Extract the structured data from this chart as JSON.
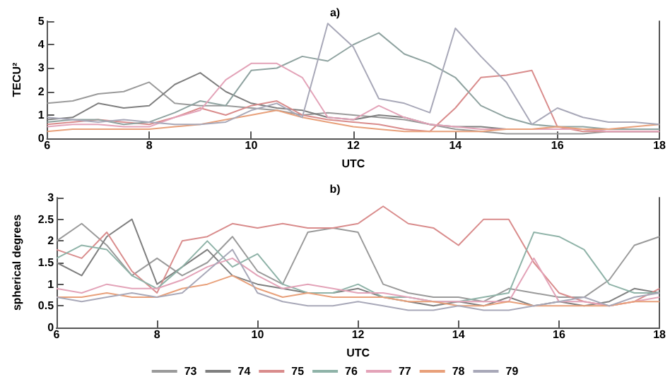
{
  "chart_data": [
    {
      "type": "line",
      "title": "a)",
      "xlabel": "UTC",
      "ylabel": "TECU²",
      "x": [
        6,
        6.5,
        7,
        7.5,
        8,
        8.5,
        9,
        9.5,
        10,
        10.5,
        11,
        11.5,
        12,
        12.5,
        13,
        13.5,
        14,
        14.5,
        15,
        15.5,
        16,
        16.5,
        17,
        17.5,
        18
      ],
      "xlim": [
        6,
        18
      ],
      "ylim": [
        0,
        5
      ],
      "xticks": [
        6,
        8,
        10,
        12,
        14,
        16,
        18
      ],
      "yticks": [
        0,
        1,
        2,
        3,
        4,
        5
      ],
      "grid": false,
      "legend": false,
      "marker": "none",
      "line_style": "solid",
      "series": [
        {
          "color": "#9a9a9a",
          "values": [
            1.5,
            1.6,
            1.9,
            2.0,
            2.4,
            1.5,
            1.4,
            1.4,
            1.3,
            1.2,
            1.0,
            1.1,
            1.0,
            0.9,
            0.8,
            0.6,
            0.4,
            0.3,
            0.2,
            0.2,
            0.2,
            0.2,
            0.3,
            0.3,
            0.3
          ]
        },
        {
          "color": "#7f7f7f",
          "values": [
            0.8,
            0.9,
            1.5,
            1.3,
            1.4,
            2.3,
            2.8,
            2.0,
            1.5,
            1.3,
            1.2,
            0.9,
            0.8,
            1.0,
            0.9,
            0.6,
            0.5,
            0.5,
            0.4,
            0.4,
            0.4,
            0.4,
            0.3,
            0.3,
            0.3
          ]
        },
        {
          "color": "#d98c8c",
          "values": [
            0.6,
            0.7,
            0.8,
            0.7,
            0.6,
            0.9,
            1.3,
            1.0,
            1.4,
            1.6,
            1.0,
            0.8,
            0.7,
            0.6,
            0.4,
            0.3,
            1.3,
            2.6,
            2.7,
            2.9,
            0.5,
            0.3,
            0.3,
            0.3,
            0.3
          ]
        },
        {
          "color": "#8fa3a0",
          "values": [
            0.7,
            0.8,
            0.8,
            0.6,
            0.7,
            1.1,
            1.6,
            1.4,
            2.9,
            3.0,
            3.5,
            3.3,
            4.0,
            4.5,
            3.6,
            3.2,
            2.6,
            1.4,
            0.9,
            0.6,
            0.5,
            0.5,
            0.4,
            0.4,
            0.4
          ]
        },
        {
          "color": "#e3a3b8",
          "values": [
            0.5,
            0.6,
            0.6,
            0.5,
            0.5,
            0.9,
            1.2,
            2.5,
            3.2,
            3.2,
            2.6,
            0.9,
            0.8,
            1.4,
            0.9,
            0.6,
            0.5,
            0.4,
            0.4,
            0.4,
            0.4,
            0.4,
            0.3,
            0.3,
            0.3
          ]
        },
        {
          "color": "#e8a07a",
          "values": [
            0.3,
            0.4,
            0.4,
            0.4,
            0.4,
            0.5,
            0.6,
            0.8,
            1.0,
            1.2,
            0.9,
            0.7,
            0.5,
            0.4,
            0.3,
            0.3,
            0.3,
            0.3,
            0.4,
            0.4,
            0.5,
            0.4,
            0.4,
            0.5,
            0.6
          ]
        },
        {
          "color": "#a8a8b8",
          "values": [
            0.9,
            0.8,
            0.7,
            0.8,
            0.7,
            0.6,
            0.6,
            0.7,
            1.2,
            1.5,
            0.9,
            4.9,
            3.9,
            1.7,
            1.5,
            1.1,
            4.7,
            3.5,
            2.4,
            0.6,
            1.3,
            0.9,
            0.7,
            0.7,
            0.6
          ]
        }
      ]
    },
    {
      "type": "line",
      "title": "b)",
      "xlabel": "UTC",
      "ylabel": "spherical degrees",
      "x": [
        6,
        6.5,
        7,
        7.5,
        8,
        8.5,
        9,
        9.5,
        10,
        10.5,
        11,
        11.5,
        12,
        12.5,
        13,
        13.5,
        14,
        14.5,
        15,
        15.5,
        16,
        16.5,
        17,
        17.5,
        18
      ],
      "xlim": [
        6,
        18
      ],
      "ylim": [
        0,
        3
      ],
      "xticks": [
        6,
        8,
        10,
        12,
        14,
        16,
        18
      ],
      "yticks": [
        0,
        0.5,
        1,
        1.5,
        2,
        2.5,
        3
      ],
      "grid": false,
      "legend": "bottom",
      "marker": "none",
      "line_style": "solid",
      "series": [
        {
          "name": "73",
          "color": "#9a9a9a",
          "values": [
            2.0,
            2.4,
            1.9,
            1.2,
            1.6,
            1.2,
            1.5,
            2.1,
            1.3,
            1.0,
            2.2,
            2.3,
            2.2,
            1.0,
            0.8,
            0.7,
            0.7,
            0.6,
            0.9,
            0.8,
            0.7,
            0.7,
            1.1,
            1.9,
            2.1
          ]
        },
        {
          "name": "74",
          "color": "#7f7f7f",
          "values": [
            1.5,
            1.2,
            2.1,
            2.5,
            1.0,
            1.4,
            1.8,
            1.2,
            1.0,
            0.9,
            0.8,
            0.8,
            0.9,
            0.7,
            0.6,
            0.5,
            0.6,
            0.5,
            0.7,
            0.5,
            0.6,
            0.5,
            0.6,
            0.9,
            0.8
          ]
        },
        {
          "name": "75",
          "color": "#d98c8c",
          "values": [
            1.8,
            1.6,
            2.2,
            1.3,
            0.8,
            2.0,
            2.1,
            2.4,
            2.3,
            2.4,
            2.3,
            2.3,
            2.4,
            2.8,
            2.4,
            2.3,
            1.9,
            2.5,
            2.5,
            1.5,
            0.8,
            0.6,
            0.5,
            0.6,
            0.9
          ]
        },
        {
          "name": "76",
          "color": "#8fb3a8",
          "values": [
            1.6,
            1.9,
            1.8,
            1.2,
            0.9,
            1.4,
            2.0,
            1.4,
            1.7,
            1.0,
            0.8,
            0.8,
            1.0,
            0.7,
            0.7,
            0.6,
            0.6,
            0.7,
            0.8,
            2.2,
            2.1,
            1.8,
            1.0,
            0.8,
            0.8
          ]
        },
        {
          "name": "77",
          "color": "#e3a3b8",
          "values": [
            0.9,
            0.8,
            1.0,
            0.9,
            0.9,
            1.1,
            1.4,
            1.6,
            1.2,
            0.9,
            1.0,
            0.9,
            0.8,
            0.8,
            0.7,
            0.6,
            0.6,
            0.6,
            0.6,
            1.6,
            0.6,
            0.6,
            0.5,
            0.6,
            0.7
          ]
        },
        {
          "name": "78",
          "color": "#e8a07a",
          "values": [
            0.7,
            0.7,
            0.8,
            0.7,
            0.7,
            0.9,
            1.0,
            1.2,
            0.9,
            0.7,
            0.8,
            0.7,
            0.7,
            0.7,
            0.6,
            0.6,
            0.5,
            0.5,
            0.6,
            0.5,
            0.5,
            0.5,
            0.5,
            0.6,
            0.6
          ]
        },
        {
          "name": "79",
          "color": "#a8a8b8",
          "values": [
            0.7,
            0.6,
            0.7,
            0.8,
            0.7,
            0.8,
            1.3,
            1.8,
            0.8,
            0.6,
            0.5,
            0.5,
            0.6,
            0.5,
            0.4,
            0.4,
            0.5,
            0.4,
            0.4,
            0.5,
            0.6,
            0.7,
            0.5,
            0.7,
            0.8
          ]
        }
      ]
    }
  ]
}
